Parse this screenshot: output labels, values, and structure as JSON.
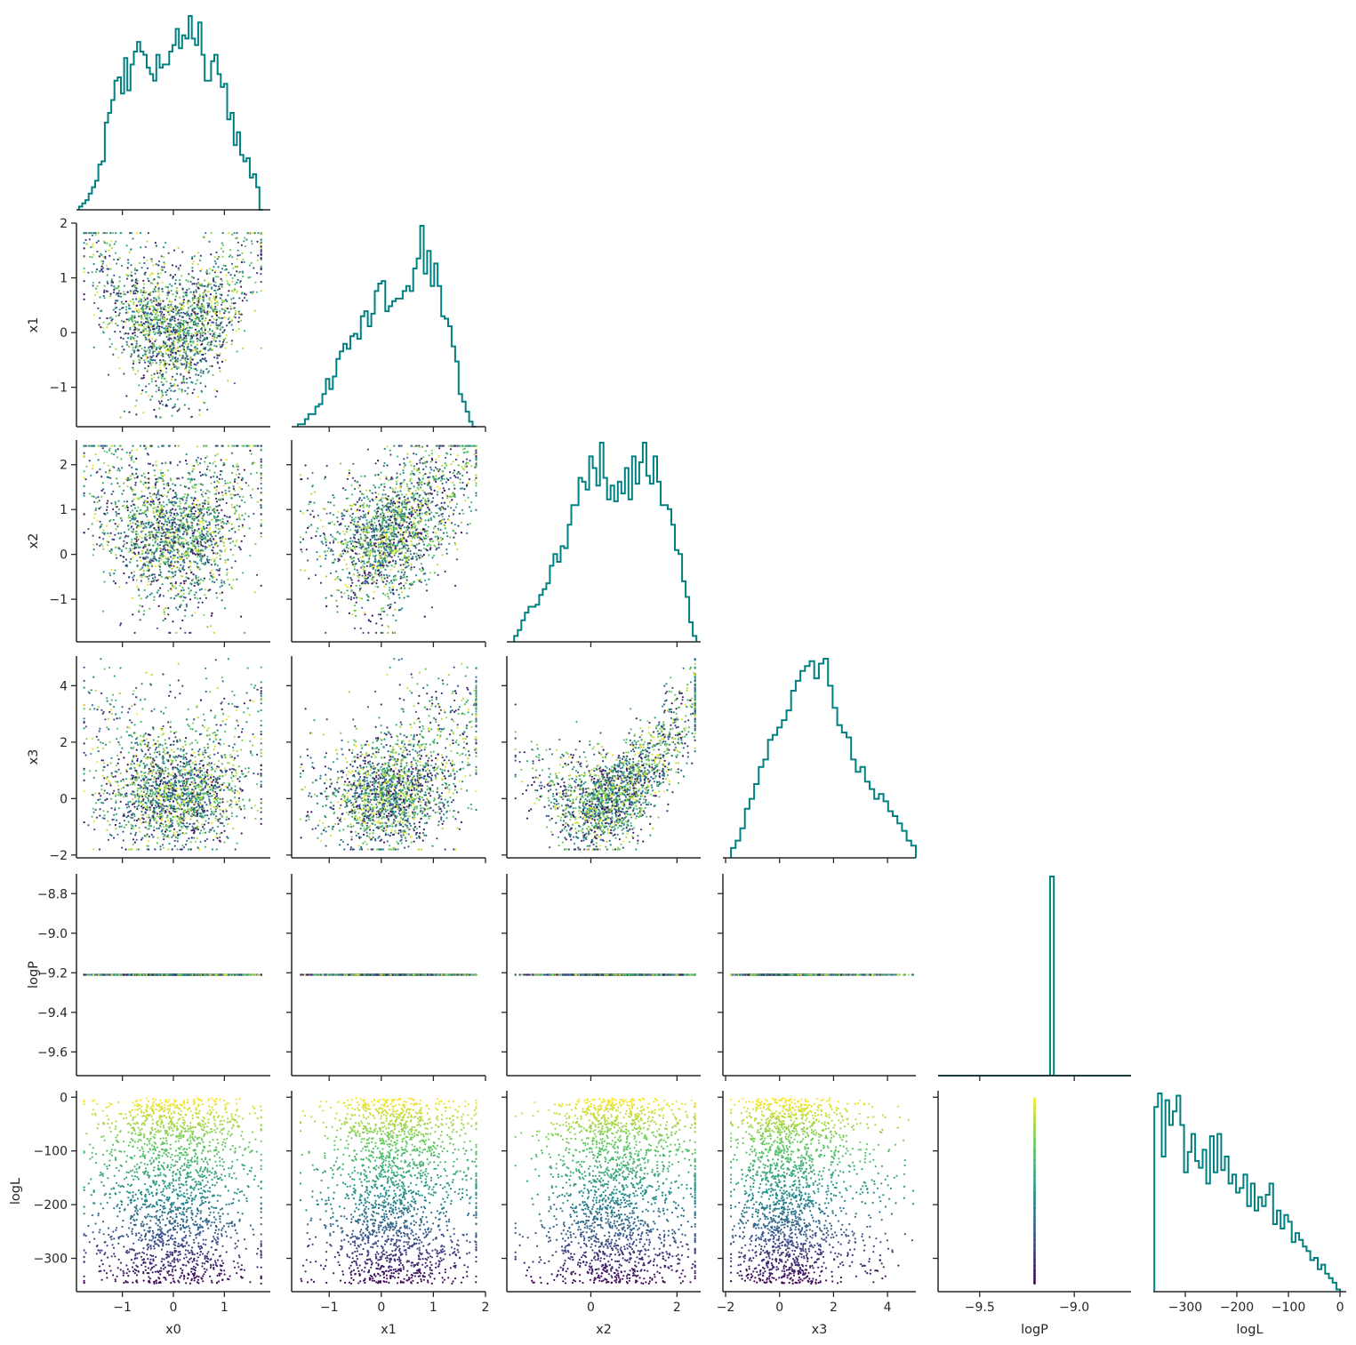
{
  "chart_data": {
    "type": "scatter",
    "subtype": "corner-plot",
    "title": "",
    "variables": [
      "x0",
      "x1",
      "x2",
      "x3",
      "logP",
      "logL"
    ],
    "axis_labels": {
      "x": [
        "x0",
        "x1",
        "x2",
        "x3",
        "logP",
        "logL"
      ],
      "y": [
        "",
        "x1",
        "x2",
        "x3",
        "logP",
        "logL"
      ]
    },
    "ranges": {
      "x0": [
        -1.9,
        1.9
      ],
      "x1": [
        -1.72,
        2.0
      ],
      "x2": [
        -1.95,
        2.55
      ],
      "x3": [
        -2.1,
        5.05
      ],
      "logP": [
        -9.72,
        -8.7
      ],
      "logL": [
        -362,
        12
      ]
    },
    "x_ticks": {
      "x0": [
        -1,
        0,
        1
      ],
      "x1": [
        -1,
        0,
        1,
        2
      ],
      "x2": [
        0,
        2
      ],
      "x3": [
        -2,
        0,
        2,
        4
      ],
      "logP": [
        -9.5,
        -9.0
      ],
      "logL": [
        -300,
        -200,
        -100,
        0
      ]
    },
    "x_tick_labels": {
      "x0": [
        "−1",
        "0",
        "1"
      ],
      "x1": [
        "−1",
        "0",
        "1",
        "2"
      ],
      "x2": [
        "0",
        "2"
      ],
      "x3": [
        "−2",
        "0",
        "2",
        "4"
      ],
      "logP": [
        "−9.5",
        "−9.0"
      ],
      "logL": [
        "−300",
        "−200",
        "−100",
        "0"
      ]
    },
    "y_ticks": {
      "x1": [
        -1,
        0,
        1,
        2
      ],
      "x2": [
        -1,
        0,
        1,
        2
      ],
      "x3": [
        -2,
        0,
        2,
        4
      ],
      "logP": [
        -9.6,
        -9.4,
        -9.2,
        -9.0,
        -8.8
      ],
      "logL": [
        -300,
        -200,
        -100,
        0
      ]
    },
    "y_tick_labels": {
      "x1": [
        "−1",
        "0",
        "1",
        "2"
      ],
      "x2": [
        "−1",
        "0",
        "1",
        "2"
      ],
      "x3": [
        "−2",
        "0",
        "2",
        "4"
      ],
      "logP": [
        "−9.6",
        "−9.4",
        "−9.2",
        "−9.0",
        "−8.8"
      ],
      "logL": [
        "−300",
        "−200",
        "−100",
        "0"
      ]
    },
    "histograms": {
      "x0": {
        "start": -1.85,
        "end": 1.75,
        "counts": [
          1,
          2,
          3,
          5,
          7,
          9,
          14,
          15,
          27,
          30,
          34,
          40,
          41,
          36,
          47,
          37,
          45,
          49,
          52,
          49,
          48,
          44,
          42,
          40,
          48,
          44,
          45,
          45,
          49,
          51,
          56,
          50,
          54,
          53,
          60,
          53,
          51,
          58,
          48,
          40,
          40,
          46,
          48,
          42,
          38,
          39,
          28,
          30,
          20,
          24,
          17,
          15,
          16,
          10,
          11,
          7,
          0
        ]
      },
      "x1": {
        "start": -1.6,
        "end": 1.82,
        "counts": [
          1,
          1,
          3,
          5,
          5,
          8,
          9,
          13,
          19,
          15,
          20,
          27,
          30,
          33,
          31,
          36,
          37,
          35,
          44,
          46,
          40,
          45,
          54,
          57,
          58,
          46,
          48,
          50,
          51,
          51,
          54,
          56,
          54,
          63,
          67,
          80,
          61,
          70,
          56,
          65,
          56,
          44,
          43,
          40,
          32,
          26,
          13,
          10,
          6,
          2,
          0
        ]
      },
      "x2": {
        "start": -1.78,
        "end": 2.45,
        "counts": [
          3,
          6,
          11,
          15,
          18,
          18,
          19,
          24,
          27,
          30,
          39,
          45,
          41,
          49,
          48,
          60,
          70,
          70,
          84,
          82,
          78,
          95,
          89,
          80,
          102,
          84,
          73,
          80,
          72,
          82,
          76,
          89,
          73,
          95,
          81,
          92,
          102,
          85,
          81,
          95,
          82,
          70,
          70,
          68,
          60,
          47,
          45,
          31,
          23,
          10,
          3
        ]
      },
      "x3": {
        "start": -1.8,
        "end": 5.05,
        "counts": [
          4,
          7,
          12,
          20,
          24,
          30,
          37,
          40,
          48,
          50,
          53,
          56,
          60,
          68,
          72,
          76,
          78,
          80,
          73,
          79,
          81,
          70,
          61,
          54,
          51,
          49,
          40,
          35,
          37,
          31,
          28,
          24,
          26,
          23,
          19,
          17,
          14,
          11,
          7,
          5
        ]
      },
      "logP": {
        "start": -9.72,
        "end": -8.7,
        "counts": [
          0,
          0,
          0,
          0,
          0,
          0,
          0,
          0,
          0,
          0,
          0,
          0,
          0,
          0,
          0,
          0,
          0,
          0,
          0,
          0,
          0,
          0,
          0,
          0,
          0,
          0,
          0,
          0,
          0,
          100,
          0,
          0,
          0,
          0,
          0,
          0,
          0,
          0,
          0,
          0,
          0,
          0,
          0,
          0,
          0,
          0,
          0,
          0,
          0,
          0
        ]
      },
      "logL": {
        "start": -360,
        "end": 0,
        "counts": [
          82,
          88,
          60,
          85,
          74,
          80,
          87,
          74,
          53,
          62,
          70,
          58,
          55,
          63,
          48,
          69,
          53,
          70,
          54,
          60,
          48,
          52,
          44,
          46,
          52,
          38,
          48,
          36,
          42,
          38,
          43,
          48,
          30,
          36,
          28,
          34,
          31,
          22,
          26,
          23,
          20,
          18,
          14,
          15,
          10,
          12,
          8,
          6,
          4,
          1
        ]
      }
    },
    "scatter": {
      "n_points": 2000,
      "colormap": [
        "#440154",
        "#3b528b",
        "#21918c",
        "#5ec962",
        "#fde725"
      ],
      "color_by": "logL",
      "marker_color_note": "points colored by logL"
    },
    "logP_constant": -9.21,
    "legend": "none",
    "grid": false,
    "colors": {
      "histogram": "#008080",
      "axes": "#262626"
    }
  }
}
